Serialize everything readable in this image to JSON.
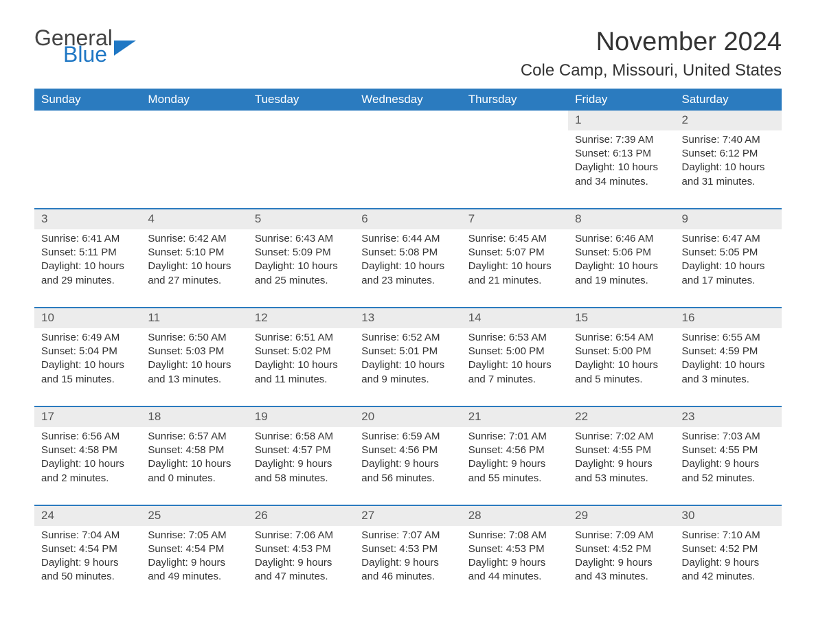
{
  "logo": {
    "text1": "General",
    "text2": "Blue",
    "icon_color": "#1f77c4"
  },
  "title": "November 2024",
  "location": "Cole Camp, Missouri, United States",
  "colors": {
    "header_bg": "#2b7bbf",
    "header_text": "#ffffff",
    "border": "#2b7bbf",
    "daynum_bg": "#ececec",
    "text": "#333333",
    "background": "#ffffff"
  },
  "dayNames": [
    "Sunday",
    "Monday",
    "Tuesday",
    "Wednesday",
    "Thursday",
    "Friday",
    "Saturday"
  ],
  "weeks": [
    [
      null,
      null,
      null,
      null,
      null,
      {
        "n": "1",
        "sr": "Sunrise: 7:39 AM",
        "ss": "Sunset: 6:13 PM",
        "dl": "Daylight: 10 hours and 34 minutes."
      },
      {
        "n": "2",
        "sr": "Sunrise: 7:40 AM",
        "ss": "Sunset: 6:12 PM",
        "dl": "Daylight: 10 hours and 31 minutes."
      }
    ],
    [
      {
        "n": "3",
        "sr": "Sunrise: 6:41 AM",
        "ss": "Sunset: 5:11 PM",
        "dl": "Daylight: 10 hours and 29 minutes."
      },
      {
        "n": "4",
        "sr": "Sunrise: 6:42 AM",
        "ss": "Sunset: 5:10 PM",
        "dl": "Daylight: 10 hours and 27 minutes."
      },
      {
        "n": "5",
        "sr": "Sunrise: 6:43 AM",
        "ss": "Sunset: 5:09 PM",
        "dl": "Daylight: 10 hours and 25 minutes."
      },
      {
        "n": "6",
        "sr": "Sunrise: 6:44 AM",
        "ss": "Sunset: 5:08 PM",
        "dl": "Daylight: 10 hours and 23 minutes."
      },
      {
        "n": "7",
        "sr": "Sunrise: 6:45 AM",
        "ss": "Sunset: 5:07 PM",
        "dl": "Daylight: 10 hours and 21 minutes."
      },
      {
        "n": "8",
        "sr": "Sunrise: 6:46 AM",
        "ss": "Sunset: 5:06 PM",
        "dl": "Daylight: 10 hours and 19 minutes."
      },
      {
        "n": "9",
        "sr": "Sunrise: 6:47 AM",
        "ss": "Sunset: 5:05 PM",
        "dl": "Daylight: 10 hours and 17 minutes."
      }
    ],
    [
      {
        "n": "10",
        "sr": "Sunrise: 6:49 AM",
        "ss": "Sunset: 5:04 PM",
        "dl": "Daylight: 10 hours and 15 minutes."
      },
      {
        "n": "11",
        "sr": "Sunrise: 6:50 AM",
        "ss": "Sunset: 5:03 PM",
        "dl": "Daylight: 10 hours and 13 minutes."
      },
      {
        "n": "12",
        "sr": "Sunrise: 6:51 AM",
        "ss": "Sunset: 5:02 PM",
        "dl": "Daylight: 10 hours and 11 minutes."
      },
      {
        "n": "13",
        "sr": "Sunrise: 6:52 AM",
        "ss": "Sunset: 5:01 PM",
        "dl": "Daylight: 10 hours and 9 minutes."
      },
      {
        "n": "14",
        "sr": "Sunrise: 6:53 AM",
        "ss": "Sunset: 5:00 PM",
        "dl": "Daylight: 10 hours and 7 minutes."
      },
      {
        "n": "15",
        "sr": "Sunrise: 6:54 AM",
        "ss": "Sunset: 5:00 PM",
        "dl": "Daylight: 10 hours and 5 minutes."
      },
      {
        "n": "16",
        "sr": "Sunrise: 6:55 AM",
        "ss": "Sunset: 4:59 PM",
        "dl": "Daylight: 10 hours and 3 minutes."
      }
    ],
    [
      {
        "n": "17",
        "sr": "Sunrise: 6:56 AM",
        "ss": "Sunset: 4:58 PM",
        "dl": "Daylight: 10 hours and 2 minutes."
      },
      {
        "n": "18",
        "sr": "Sunrise: 6:57 AM",
        "ss": "Sunset: 4:58 PM",
        "dl": "Daylight: 10 hours and 0 minutes."
      },
      {
        "n": "19",
        "sr": "Sunrise: 6:58 AM",
        "ss": "Sunset: 4:57 PM",
        "dl": "Daylight: 9 hours and 58 minutes."
      },
      {
        "n": "20",
        "sr": "Sunrise: 6:59 AM",
        "ss": "Sunset: 4:56 PM",
        "dl": "Daylight: 9 hours and 56 minutes."
      },
      {
        "n": "21",
        "sr": "Sunrise: 7:01 AM",
        "ss": "Sunset: 4:56 PM",
        "dl": "Daylight: 9 hours and 55 minutes."
      },
      {
        "n": "22",
        "sr": "Sunrise: 7:02 AM",
        "ss": "Sunset: 4:55 PM",
        "dl": "Daylight: 9 hours and 53 minutes."
      },
      {
        "n": "23",
        "sr": "Sunrise: 7:03 AM",
        "ss": "Sunset: 4:55 PM",
        "dl": "Daylight: 9 hours and 52 minutes."
      }
    ],
    [
      {
        "n": "24",
        "sr": "Sunrise: 7:04 AM",
        "ss": "Sunset: 4:54 PM",
        "dl": "Daylight: 9 hours and 50 minutes."
      },
      {
        "n": "25",
        "sr": "Sunrise: 7:05 AM",
        "ss": "Sunset: 4:54 PM",
        "dl": "Daylight: 9 hours and 49 minutes."
      },
      {
        "n": "26",
        "sr": "Sunrise: 7:06 AM",
        "ss": "Sunset: 4:53 PM",
        "dl": "Daylight: 9 hours and 47 minutes."
      },
      {
        "n": "27",
        "sr": "Sunrise: 7:07 AM",
        "ss": "Sunset: 4:53 PM",
        "dl": "Daylight: 9 hours and 46 minutes."
      },
      {
        "n": "28",
        "sr": "Sunrise: 7:08 AM",
        "ss": "Sunset: 4:53 PM",
        "dl": "Daylight: 9 hours and 44 minutes."
      },
      {
        "n": "29",
        "sr": "Sunrise: 7:09 AM",
        "ss": "Sunset: 4:52 PM",
        "dl": "Daylight: 9 hours and 43 minutes."
      },
      {
        "n": "30",
        "sr": "Sunrise: 7:10 AM",
        "ss": "Sunset: 4:52 PM",
        "dl": "Daylight: 9 hours and 42 minutes."
      }
    ]
  ]
}
